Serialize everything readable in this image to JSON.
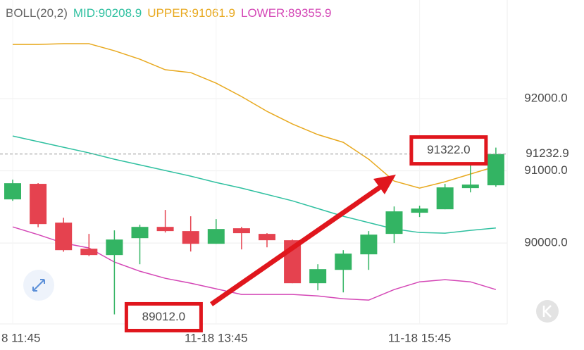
{
  "chart_data": {
    "type": "candlestick",
    "title": "BOLL(20,2)",
    "categories": [
      "8 11:45",
      null,
      null,
      null,
      null,
      null,
      null,
      null,
      "11-18 13:45",
      null,
      null,
      null,
      null,
      null,
      null,
      null,
      "11-18 15:45",
      null,
      null,
      null
    ],
    "open": [
      90605,
      90820,
      90283,
      89922,
      89834,
      90068,
      90224,
      90166,
      89990,
      90205,
      90127,
      90039,
      89444,
      89629,
      89844,
      90127,
      90420,
      90468,
      90761,
      90800
    ],
    "high": [
      90878,
      90830,
      90351,
      90127,
      90176,
      90254,
      90459,
      90371,
      90332,
      90224,
      90137,
      90049,
      89707,
      89902,
      90166,
      90507,
      90517,
      90820,
      91141,
      91322
    ],
    "low": [
      90585,
      90220,
      89880,
      89820,
      89012,
      89707,
      90146,
      89883,
      89990,
      89912,
      89941,
      89444,
      89346,
      89317,
      89629,
      90000,
      90361,
      90468,
      90702,
      90780
    ],
    "close": [
      90829,
      90263,
      89902,
      89834,
      90049,
      90224,
      90166,
      89990,
      90195,
      90137,
      90039,
      89444,
      89639,
      89854,
      90117,
      90439,
      90478,
      90771,
      90810,
      91232.9
    ],
    "up_color": "#33b463",
    "down_color": "#e5424f",
    "series": [
      {
        "name": "MID:90208.9",
        "color": "#2fc0a0",
        "values": [
          91483,
          91405,
          91327,
          91249,
          91161,
          91083,
          91005,
          90927,
          90839,
          90761,
          90673,
          90585,
          90478,
          90371,
          90283,
          90195,
          90146,
          90137,
          90176,
          90208.9
        ]
      },
      {
        "name": "UPPER:91061.9",
        "color": "#e8a91f",
        "values": [
          92751,
          92751,
          92761,
          92761,
          92663,
          92546,
          92400,
          92361,
          92215,
          92029,
          91824,
          91649,
          91502,
          91395,
          91161,
          90859,
          90761,
          90849,
          90956,
          91061.9
        ]
      },
      {
        "name": "LOWER:89355.9",
        "color": "#d447b6",
        "values": [
          90224,
          90117,
          90000,
          89932,
          89737,
          89610,
          89512,
          89444,
          89366,
          89288,
          89288,
          89288,
          89268,
          89229,
          89210,
          89356,
          89463,
          89493,
          89463,
          89355.9
        ]
      }
    ],
    "ylim": [
      88880,
      93366
    ],
    "yticks": [
      {
        "value": 90000,
        "label": "90000.0"
      },
      {
        "value": 91000,
        "label": "91000.0"
      },
      {
        "value": 92000,
        "label": "92000.0"
      }
    ],
    "grid": true,
    "last_price": {
      "value": 91232.9,
      "label": "91232.9",
      "color": "#2fa85a"
    },
    "annotations": [
      {
        "value": 91322,
        "label": "91322.0"
      },
      {
        "value": 89012,
        "label": "89012.0"
      }
    ],
    "annotation_color": "#e0161d"
  }
}
